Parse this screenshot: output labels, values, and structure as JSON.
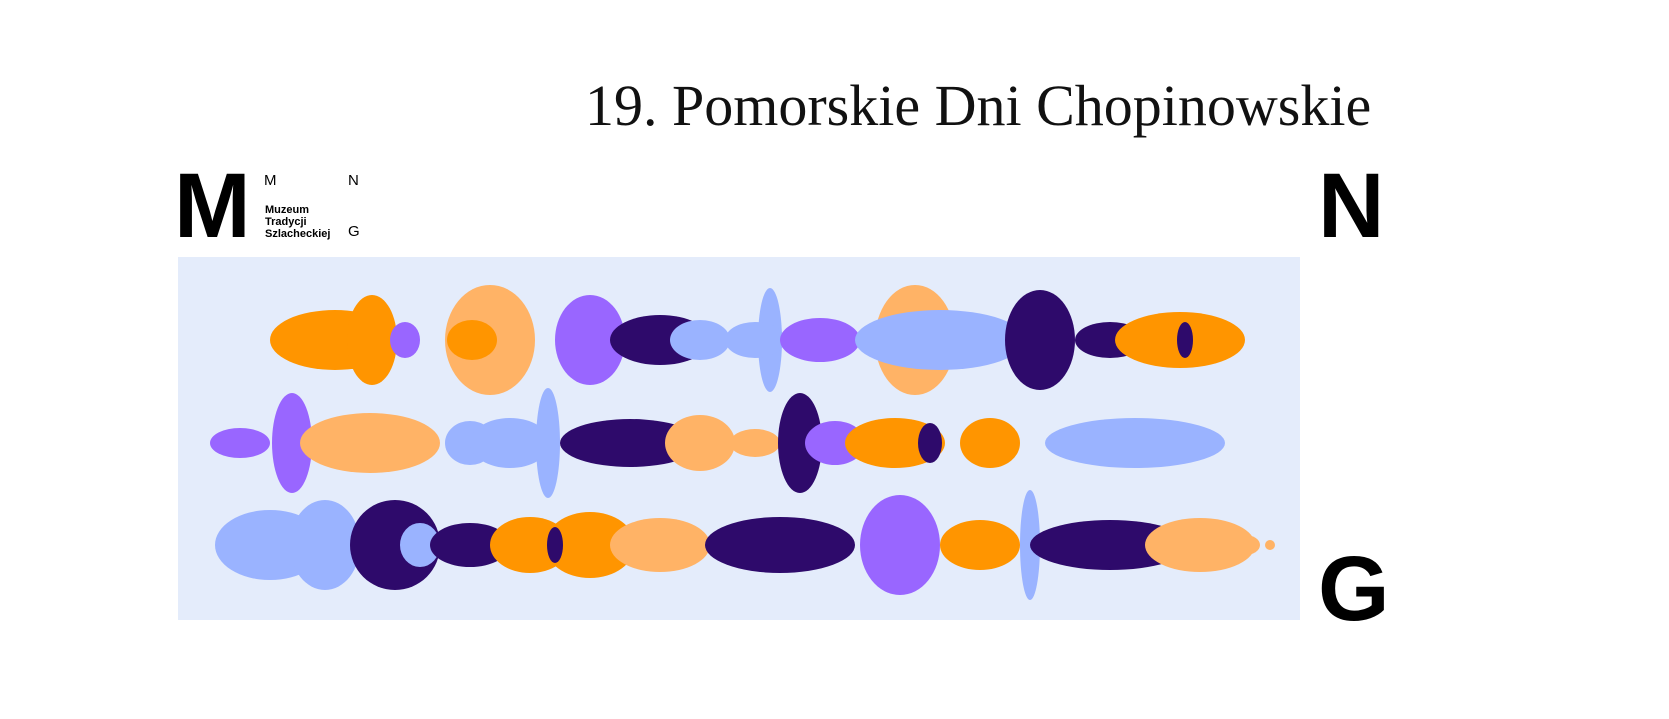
{
  "title": "19. Pomorskie Dni Chopinowskie",
  "logo": {
    "big_letters": [
      "M",
      "N",
      "G"
    ],
    "small": {
      "top_left": "M",
      "top_right": "N",
      "name_lines": [
        "Muzeum",
        "Tradycji",
        "Szlacheckiej"
      ],
      "bottom_right": "G"
    }
  }
}
